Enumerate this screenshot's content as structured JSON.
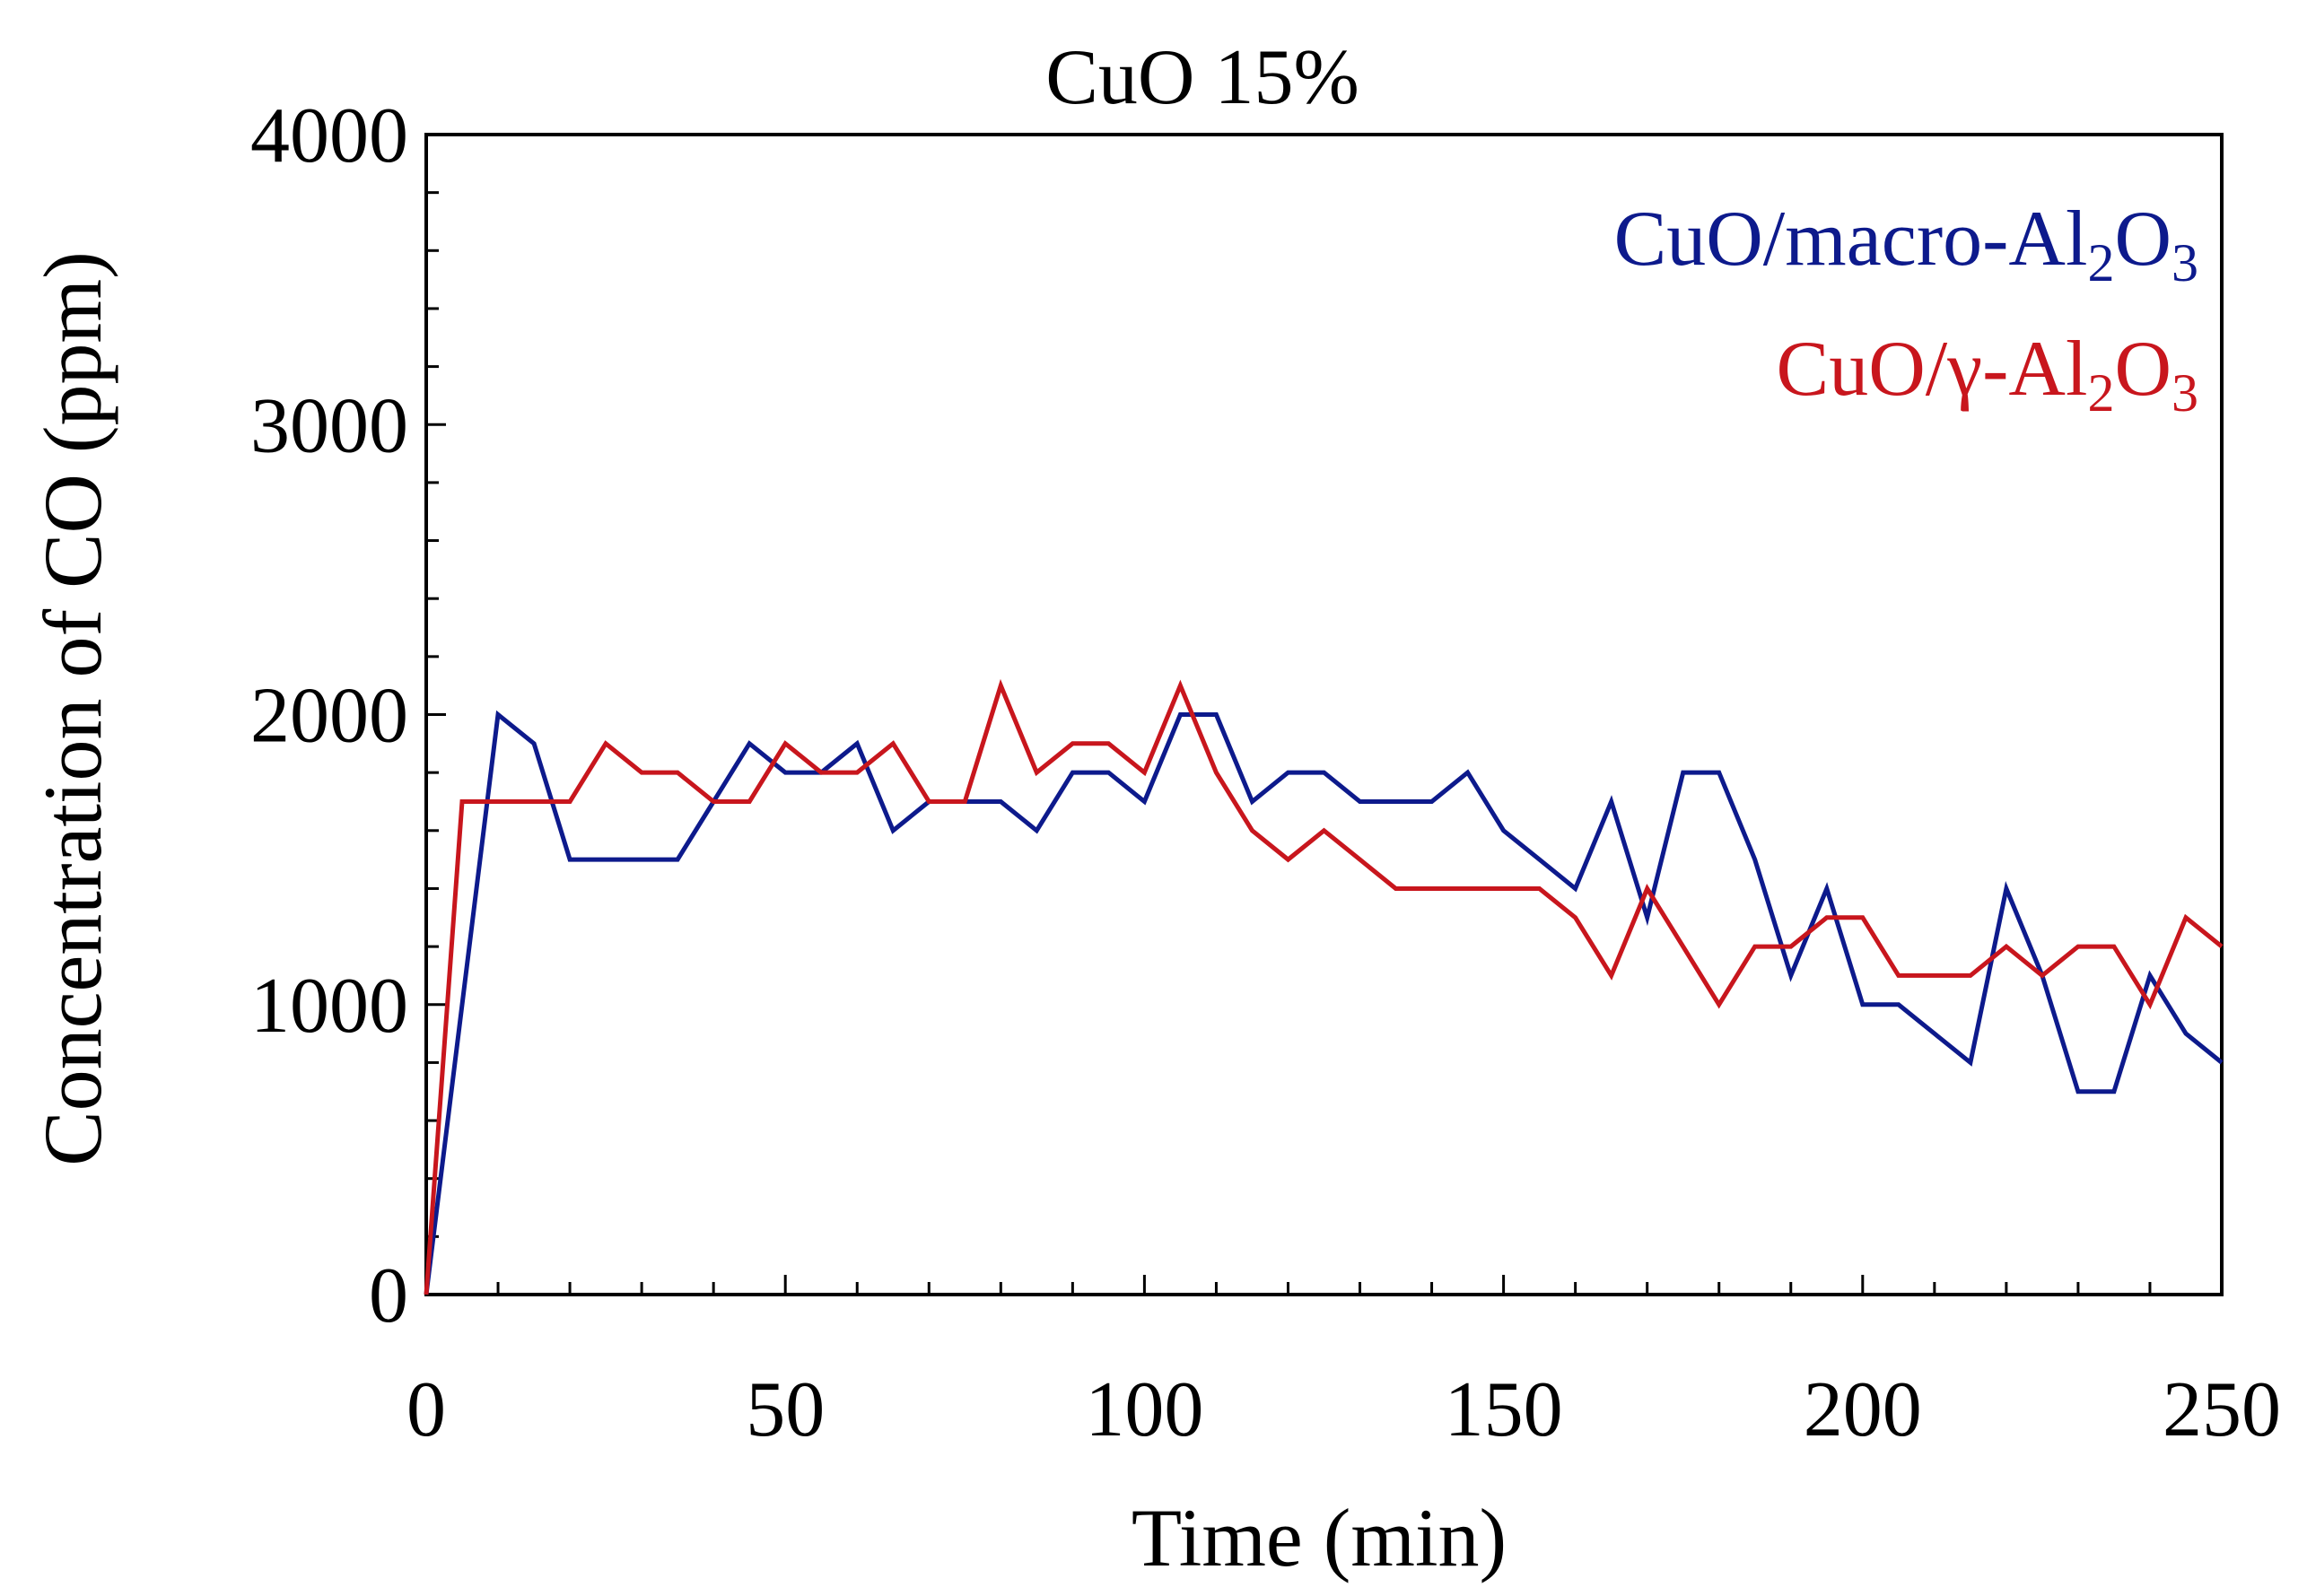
{
  "chart_data": {
    "type": "line",
    "title": "CuO 15%",
    "xlabel": "Time (min)",
    "ylabel": "Concentration of CO (ppm)",
    "xlim": [
      0,
      250
    ],
    "ylim": [
      0,
      4000
    ],
    "xticks": [
      0,
      50,
      100,
      150,
      200,
      250
    ],
    "yticks": [
      0,
      1000,
      2000,
      3000,
      4000
    ],
    "xtick_labels": [
      "0",
      "50",
      "100",
      "150",
      "200",
      "250"
    ],
    "ytick_labels": [
      "0",
      "1000",
      "2000",
      "3000",
      "4000"
    ],
    "grid": false,
    "legend_position": "top-right",
    "series": [
      {
        "name": "CuO/macro-Al2O3",
        "legend_parts": [
          "CuO/macro-Al",
          "2",
          "O",
          "3"
        ],
        "color": "#0d1a8c",
        "x": [
          0,
          5,
          10,
          15,
          20,
          25,
          30,
          35,
          40,
          45,
          50,
          55,
          60,
          65,
          70,
          75,
          80,
          85,
          90,
          95,
          100,
          105,
          110,
          115,
          120,
          125,
          130,
          135,
          140,
          145,
          150,
          155,
          160,
          165,
          170,
          175,
          180,
          185,
          190,
          195,
          200,
          205,
          210,
          215,
          220,
          225,
          230,
          235,
          240,
          245,
          250
        ],
        "y": [
          0,
          1000,
          2000,
          1900,
          1500,
          1500,
          1500,
          1500,
          1700,
          1900,
          1800,
          1800,
          1900,
          1600,
          1700,
          1700,
          1700,
          1600,
          1800,
          1800,
          1700,
          2000,
          2000,
          1700,
          1800,
          1800,
          1700,
          1700,
          1700,
          1800,
          1600,
          1500,
          1400,
          1700,
          1300,
          1800,
          1800,
          1500,
          1100,
          1400,
          1000,
          1000,
          900,
          800,
          1400,
          1100,
          700,
          700,
          1100,
          900,
          800
        ]
      },
      {
        "name": "CuO/γ-Al2O3",
        "legend_parts": [
          "CuO/γ-Al",
          "2",
          "O",
          "3"
        ],
        "color": "#c8161d",
        "x": [
          0,
          5,
          10,
          15,
          20,
          25,
          30,
          35,
          40,
          45,
          50,
          55,
          60,
          65,
          70,
          75,
          80,
          85,
          90,
          95,
          100,
          105,
          110,
          115,
          120,
          125,
          130,
          135,
          140,
          145,
          150,
          155,
          160,
          165,
          170,
          175,
          180,
          185,
          190,
          195,
          200,
          205,
          210,
          215,
          220,
          225,
          230,
          235,
          240,
          245,
          250
        ],
        "y": [
          0,
          1700,
          1700,
          1700,
          1700,
          1900,
          1800,
          1800,
          1700,
          1700,
          1900,
          1800,
          1800,
          1900,
          1700,
          1700,
          2100,
          1800,
          1900,
          1900,
          1800,
          2100,
          1800,
          1600,
          1500,
          1600,
          1500,
          1400,
          1400,
          1400,
          1400,
          1400,
          1300,
          1100,
          1400,
          1200,
          1000,
          1200,
          1200,
          1300,
          1300,
          1100,
          1100,
          1100,
          1200,
          1100,
          1200,
          1200,
          1000,
          1300,
          1200
        ]
      }
    ]
  }
}
